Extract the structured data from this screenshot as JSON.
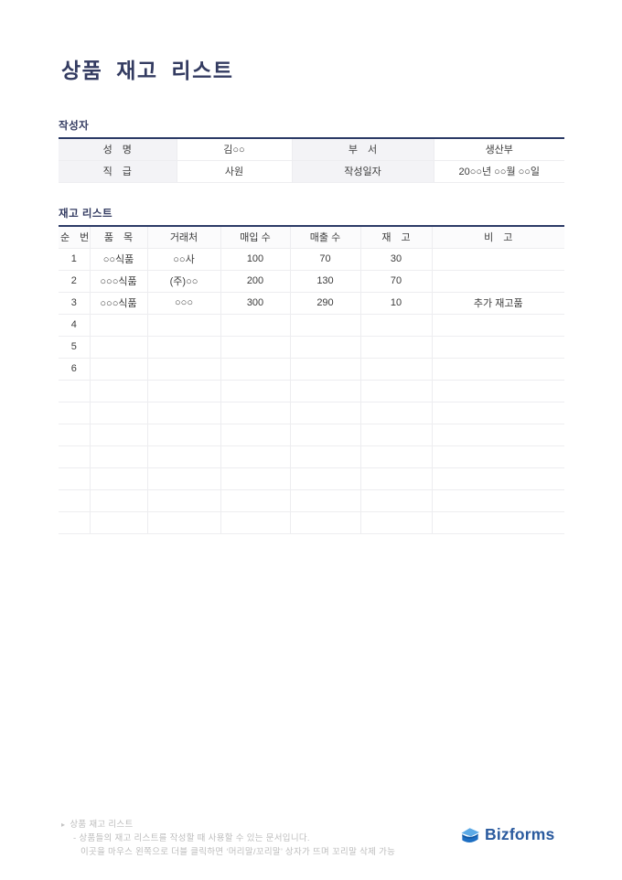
{
  "document": {
    "title": "상품 재고 리스트"
  },
  "author_section": {
    "label": "작성자",
    "rows": [
      {
        "c1": "성　명",
        "v1": "김○○",
        "c2": "부　서",
        "v2": "생산부"
      },
      {
        "c1": "직　급",
        "v1": "사원",
        "c2": "작성일자",
        "v2": "20○○년 ○○월 ○○일"
      }
    ]
  },
  "inventory_section": {
    "label": "재고 리스트",
    "columns": [
      "순　번",
      "품　목",
      "거래처",
      "매입 수",
      "매출 수",
      "재　고",
      "비　고"
    ],
    "rows": [
      [
        "1",
        "○○식품",
        "○○사",
        "100",
        "70",
        "30",
        ""
      ],
      [
        "2",
        "○○○식품",
        "(주)○○",
        "200",
        "130",
        "70",
        ""
      ],
      [
        "3",
        "○○○식품",
        "○○○",
        "300",
        "290",
        "10",
        "추가 재고품"
      ],
      [
        "4",
        "",
        "",
        "",
        "",
        "",
        ""
      ],
      [
        "5",
        "",
        "",
        "",
        "",
        "",
        ""
      ],
      [
        "6",
        "",
        "",
        "",
        "",
        "",
        ""
      ],
      [
        "",
        "",
        "",
        "",
        "",
        "",
        ""
      ],
      [
        "",
        "",
        "",
        "",
        "",
        "",
        ""
      ],
      [
        "",
        "",
        "",
        "",
        "",
        "",
        ""
      ],
      [
        "",
        "",
        "",
        "",
        "",
        "",
        ""
      ],
      [
        "",
        "",
        "",
        "",
        "",
        "",
        ""
      ],
      [
        "",
        "",
        "",
        "",
        "",
        "",
        ""
      ],
      [
        "",
        "",
        "",
        "",
        "",
        "",
        ""
      ]
    ]
  },
  "footer": {
    "bullet": "▸",
    "title": "상품 재고 리스트",
    "line1": "- 상품들의 재고 리스트를 작성할 때 사용할 수 있는 문서입니다.",
    "line2": "이곳을 마우스 왼쪽으로 더블 클릭하면 ‘머리말/꼬리말’ 상자가 뜨며 꼬리말 삭제 가능",
    "brand": "Bizforms"
  },
  "colors": {
    "title_navy": "#333b61",
    "table_top_border": "#2b3a66",
    "label_cell_bg": "#f3f3f6",
    "footer_gray": "#bcbcbc",
    "brand_blue": "#2a5a9e"
  }
}
